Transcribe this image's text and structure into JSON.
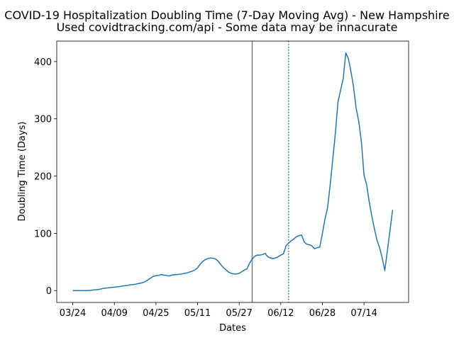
{
  "chart_data": {
    "type": "line",
    "title": "COVID-19 Hospitalization Doubling Time (7-Day Moving Avg) - New Hampshire",
    "subtitle": "Used covidtracking.com/api - Some data may be innacurate",
    "x_label": "Dates",
    "y_label": "Doubling Time (Days)",
    "x": [
      "03/24",
      "03/25",
      "03/26",
      "03/27",
      "03/28",
      "03/29",
      "03/30",
      "03/31",
      "04/01",
      "04/02",
      "04/03",
      "04/04",
      "04/05",
      "04/06",
      "04/07",
      "04/08",
      "04/09",
      "04/10",
      "04/11",
      "04/12",
      "04/13",
      "04/14",
      "04/15",
      "04/16",
      "04/17",
      "04/18",
      "04/19",
      "04/20",
      "04/21",
      "04/22",
      "04/23",
      "04/24",
      "04/25",
      "04/26",
      "04/27",
      "04/28",
      "04/29",
      "04/30",
      "05/01",
      "05/02",
      "05/03",
      "05/04",
      "05/05",
      "05/06",
      "05/07",
      "05/08",
      "05/09",
      "05/10",
      "05/11",
      "05/12",
      "05/13",
      "05/14",
      "05/15",
      "05/16",
      "05/17",
      "05/18",
      "05/19",
      "05/20",
      "05/21",
      "05/22",
      "05/23",
      "05/24",
      "05/25",
      "05/26",
      "05/27",
      "05/28",
      "05/29",
      "05/30",
      "05/31",
      "06/01",
      "06/02",
      "06/03",
      "06/04",
      "06/05",
      "06/06",
      "06/07",
      "06/08",
      "06/09",
      "06/10",
      "06/11",
      "06/12",
      "06/13",
      "06/14",
      "06/15",
      "06/16",
      "06/17",
      "06/18",
      "06/19",
      "06/20",
      "06/21",
      "06/22",
      "06/23",
      "06/24",
      "06/25",
      "06/26",
      "06/27",
      "06/28",
      "06/29",
      "06/30",
      "07/01",
      "07/02",
      "07/03",
      "07/04",
      "07/05",
      "07/06",
      "07/07",
      "07/08",
      "07/09",
      "07/10",
      "07/11",
      "07/12",
      "07/13",
      "07/14",
      "07/15",
      "07/16",
      "07/17",
      "07/18",
      "07/19",
      "07/20",
      "07/21",
      "07/22",
      "07/23",
      "07/24",
      "07/25"
    ],
    "series": [
      {
        "color": "#1f77b4",
        "values": [
          0,
          0,
          0,
          0,
          0,
          0,
          0,
          0.5,
          1,
          1.5,
          2,
          3,
          4,
          4.5,
          5,
          5.5,
          6,
          6.5,
          7,
          8,
          8.5,
          9,
          10,
          10.5,
          11,
          12,
          13,
          14,
          16,
          19,
          22,
          25,
          26,
          26.5,
          28,
          27,
          26.5,
          25.5,
          27,
          27.5,
          28,
          28.5,
          29,
          30,
          31,
          32.5,
          34,
          36,
          40,
          46,
          51,
          54,
          56,
          57,
          56.5,
          55,
          51,
          45,
          40,
          36,
          32,
          30,
          29,
          29,
          30,
          33,
          36,
          38,
          48,
          55,
          60,
          62,
          62,
          63,
          65,
          59,
          57,
          56,
          57,
          59,
          62,
          64,
          78,
          83,
          87,
          90,
          94,
          96,
          97,
          85,
          81,
          80,
          78,
          73,
          75,
          76,
          100,
          125,
          145,
          185,
          230,
          275,
          330,
          350,
          370,
          415,
          405,
          382,
          355,
          318,
          295,
          260,
          202,
          185,
          155,
          130,
          108,
          88,
          75,
          57,
          35,
          70,
          105,
          141
        ]
      }
    ],
    "vlines": [
      {
        "x": "06/01",
        "color": "#708090",
        "dash": false
      },
      {
        "x": "06/15",
        "color": "#1f77b4",
        "dash": true
      }
    ],
    "xticks": [
      "03/24",
      "04/09",
      "04/25",
      "05/11",
      "05/27",
      "06/12",
      "06/28",
      "07/14"
    ],
    "ylim": [
      -20.75,
      435.75
    ],
    "yticks": [
      0,
      100,
      200,
      300,
      400
    ]
  }
}
